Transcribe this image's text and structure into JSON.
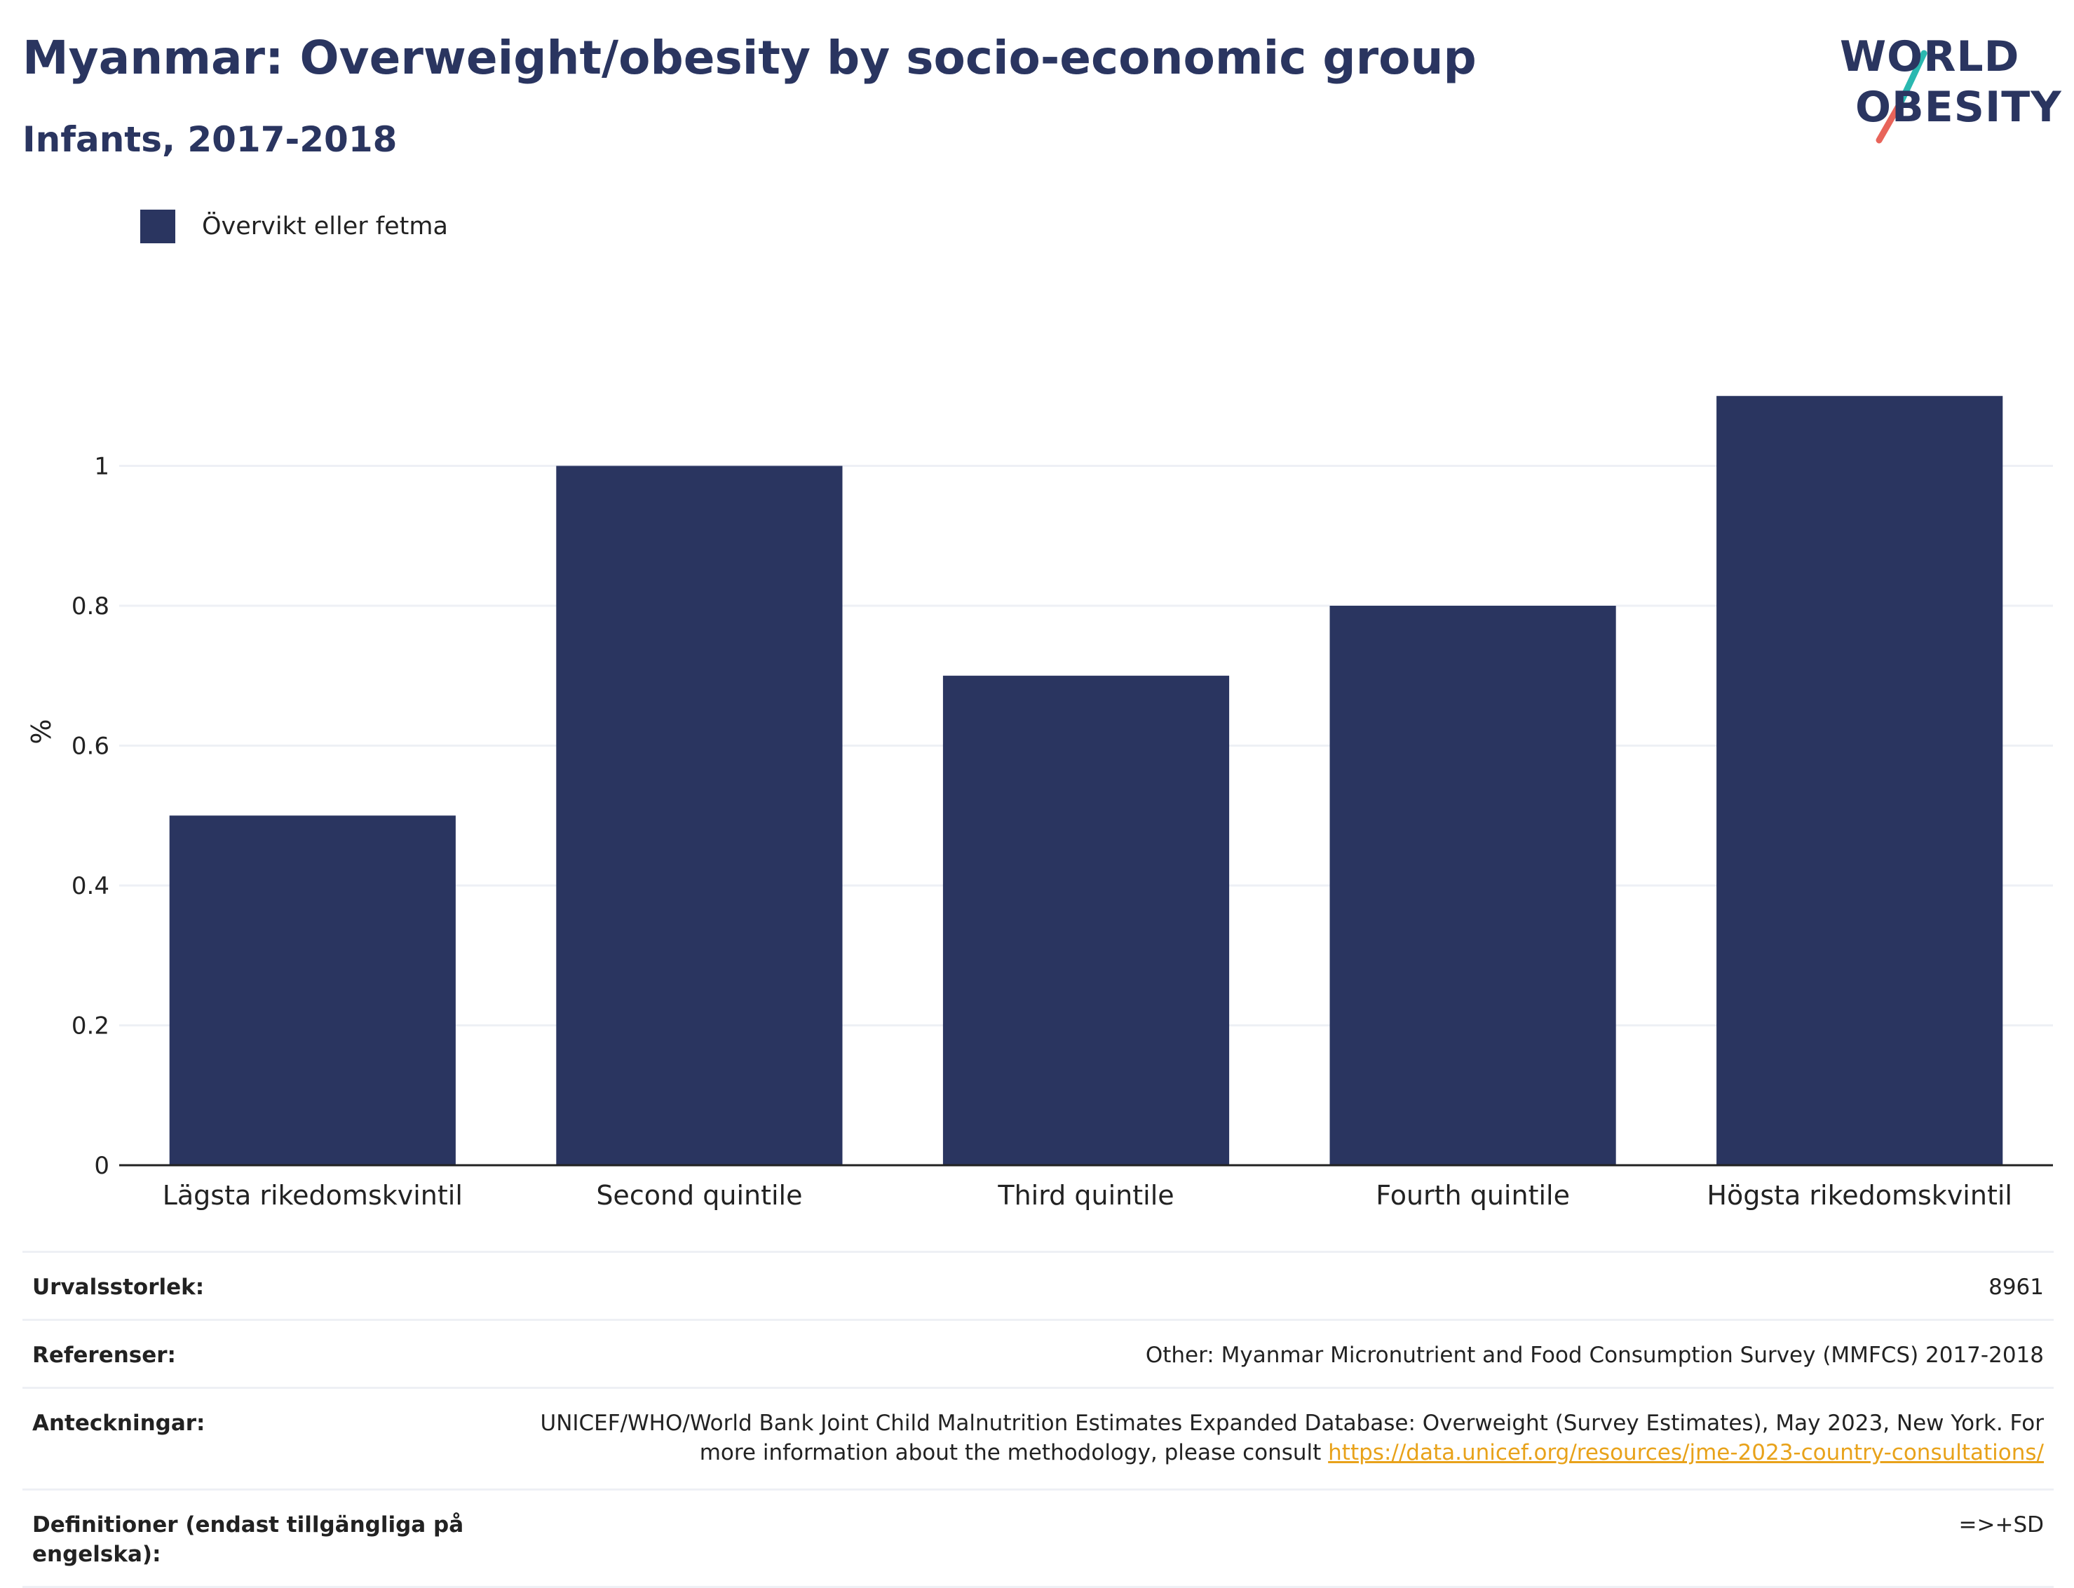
{
  "header": {
    "title": "Myanmar: Overweight/obesity by socio-economic group",
    "subtitle": "Infants, 2017-2018"
  },
  "logo": {
    "line1": "WORLD",
    "line2": "OBESITY",
    "slash_colors": [
      "#2ab8b0",
      "#e8645a"
    ]
  },
  "colors": {
    "bar": "#2a3560",
    "grid": "#eef0f5",
    "axis": "#222222",
    "link": "#e8a21a"
  },
  "chart_data": {
    "type": "bar",
    "categories": [
      "Lägsta rikedomskvintil",
      "Second quintile",
      "Third quintile",
      "Fourth quintile",
      "Högsta rikedomskvintil"
    ],
    "series": [
      {
        "name": "Övervikt eller fetma",
        "values": [
          0.5,
          1.0,
          0.7,
          0.8,
          1.1
        ]
      }
    ],
    "ylabel": "%",
    "ylim": [
      0,
      1.2
    ],
    "yticks": [
      0,
      0.2,
      0.4,
      0.6,
      0.8,
      1
    ],
    "ytick_labels": [
      "0",
      "0.2",
      "0.4",
      "0.6",
      "0.8",
      "1"
    ],
    "grid": true,
    "legend_position": "top-left"
  },
  "info": {
    "sample_size_label": "Urvalsstorlek:",
    "sample_size_value": "8961",
    "references_label": "Referenser:",
    "references_value": "Other: Myanmar Micronutrient and Food Consumption Survey (MMFCS) 2017-2018",
    "notes_label": "Anteckningar:",
    "notes_text": "UNICEF/WHO/World Bank Joint Child Malnutrition Estimates Expanded Database: Overweight (Survey Estimates), May 2023, New York. For more information about the methodology, please consult ",
    "notes_link": "https://data.unicef.org/resources/jme-2023-country-consultations/",
    "definitions_label": "Definitioner (endast tillgängliga på engelska):",
    "definitions_value": "=>+SD"
  }
}
